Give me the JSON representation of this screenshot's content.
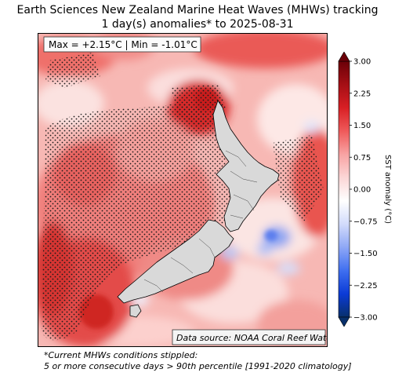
{
  "title": {
    "line1": "Earth Sciences New Zealand Marine Heat Waves (MHWs) tracking",
    "line2": "1 day(s) anomalies* to 2025-08-31"
  },
  "stats_label": "Max = +2.15°C | Min = -1.01°C",
  "source_label": "Data source: NOAA Coral Reef Watch",
  "colorbar": {
    "label": "SST anomaly (°C)",
    "ticks": [
      "3.00",
      "2.25",
      "1.50",
      "0.75",
      "0.00",
      "−0.75",
      "−1.50",
      "−2.25",
      "−3.00"
    ],
    "colors": [
      "#08306b",
      "#0b3bd6",
      "#3f6ff0",
      "#8ea7f6",
      "#d2dbfb",
      "#ffffff",
      "#fcd6d6",
      "#f8a3a3",
      "#ef5a5a",
      "#d81f24",
      "#a50f15",
      "#6b0008"
    ]
  },
  "footnote": {
    "line1": "*Current MHWs conditions stippled:",
    "line2": "5 or more consecutive days > 90th percentile [1991-2020 climatology]"
  }
}
